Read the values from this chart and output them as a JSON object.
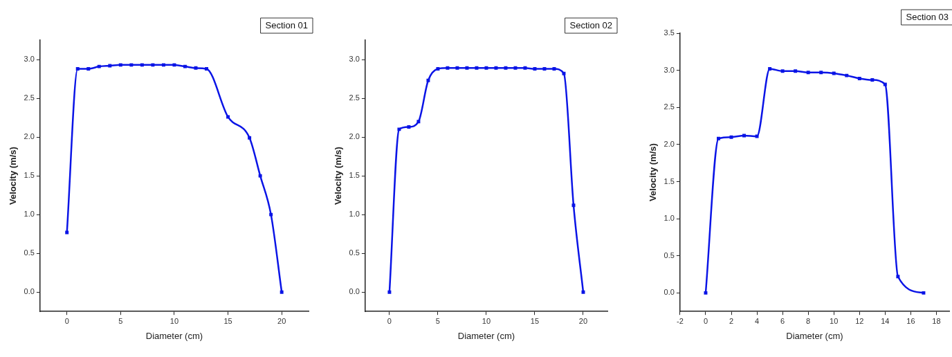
{
  "chart_data": [
    {
      "type": "line",
      "title": "Section 01",
      "xlabel": "Diameter (cm)",
      "ylabel": "Velocity (m/s)",
      "xlim": [
        -2.5,
        22.5
      ],
      "xticks": [
        0,
        5,
        10,
        15,
        20
      ],
      "ylim": [
        -0.25,
        3.25
      ],
      "yticks": [
        {
          "value": 0,
          "label": "0.0"
        },
        {
          "value": 0.5,
          "label": "0.5"
        },
        {
          "value": 1,
          "label": "1.0"
        },
        {
          "value": 1.5,
          "label": "1.5"
        },
        {
          "value": 2,
          "label": "2.0"
        },
        {
          "value": 2.5,
          "label": "2.5"
        },
        {
          "value": 3,
          "label": "3.0"
        }
      ],
      "marker": "square",
      "line_style": "solid",
      "legend": false,
      "series": [
        {
          "color": "#0a14e6",
          "x": [
            0,
            1,
            2,
            3,
            4,
            5,
            6,
            7,
            8,
            9,
            10,
            11,
            12,
            13,
            15,
            17,
            18,
            19,
            20
          ],
          "values": [
            0.77,
            2.88,
            2.88,
            2.91,
            2.92,
            2.93,
            2.93,
            2.93,
            2.93,
            2.93,
            2.93,
            2.91,
            2.89,
            2.88,
            2.26,
            1.99,
            1.5,
            1.0,
            0
          ]
        }
      ]
    },
    {
      "type": "line",
      "title": "Section 02",
      "xlabel": "Diameter (cm)",
      "ylabel": "Velocity (m/s)",
      "xlim": [
        -2.5,
        22.5
      ],
      "xticks": [
        0,
        5,
        10,
        15,
        20
      ],
      "ylim": [
        -0.25,
        3.25
      ],
      "yticks": [
        {
          "value": 0,
          "label": "0.0"
        },
        {
          "value": 0.5,
          "label": "0.5"
        },
        {
          "value": 1,
          "label": "1.0"
        },
        {
          "value": 1.5,
          "label": "1.5"
        },
        {
          "value": 2,
          "label": "2.0"
        },
        {
          "value": 2.5,
          "label": "2.5"
        },
        {
          "value": 3,
          "label": "3.0"
        }
      ],
      "marker": "square",
      "line_style": "solid",
      "legend": false,
      "series": [
        {
          "color": "#0a14e6",
          "x": [
            0,
            1,
            2,
            3,
            4,
            5,
            6,
            7,
            8,
            9,
            10,
            11,
            12,
            13,
            14,
            15,
            16,
            17,
            18,
            19,
            20
          ],
          "values": [
            0,
            2.1,
            2.13,
            2.2,
            2.73,
            2.88,
            2.89,
            2.89,
            2.89,
            2.89,
            2.89,
            2.89,
            2.89,
            2.89,
            2.89,
            2.88,
            2.88,
            2.88,
            2.82,
            1.12,
            0
          ]
        }
      ]
    },
    {
      "type": "line",
      "title": "Section 03",
      "xlabel": "Diameter (cm)",
      "ylabel": "Velocity (m/s)",
      "xlim": [
        -2,
        19
      ],
      "xticks": [
        -2,
        0,
        2,
        4,
        6,
        8,
        10,
        12,
        14,
        16,
        18
      ],
      "ylim": [
        -0.25,
        3.5
      ],
      "yticks": [
        {
          "value": 0,
          "label": "0.0"
        },
        {
          "value": 0.5,
          "label": "0.5"
        },
        {
          "value": 1,
          "label": "1.0"
        },
        {
          "value": 1.5,
          "label": "1.5"
        },
        {
          "value": 2,
          "label": "2.0"
        },
        {
          "value": 2.5,
          "label": "2.5"
        },
        {
          "value": 3,
          "label": "3.0"
        },
        {
          "value": 3.5,
          "label": "3.5"
        }
      ],
      "marker": "square",
      "line_style": "solid",
      "legend": false,
      "series": [
        {
          "color": "#0a14e6",
          "x": [
            0,
            1,
            2,
            3,
            4,
            5,
            6,
            7,
            8,
            9,
            10,
            11,
            12,
            13,
            14,
            15,
            17
          ],
          "values": [
            0,
            2.08,
            2.1,
            2.12,
            2.11,
            3.02,
            2.99,
            2.99,
            2.97,
            2.97,
            2.96,
            2.93,
            2.89,
            2.87,
            2.81,
            0.22,
            0
          ]
        }
      ]
    }
  ]
}
